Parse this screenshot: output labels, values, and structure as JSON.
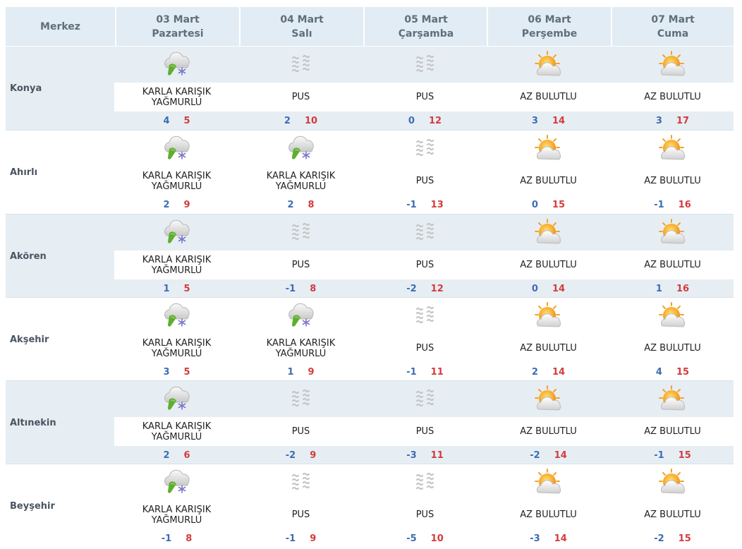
{
  "header": {
    "center_label": "Merkez",
    "days": [
      {
        "date": "03 Mart",
        "weekday": "Pazartesi"
      },
      {
        "date": "04 Mart",
        "weekday": "Salı"
      },
      {
        "date": "05 Mart",
        "weekday": "Çarşamba"
      },
      {
        "date": "06 Mart",
        "weekday": "Perşembe"
      },
      {
        "date": "07 Mart",
        "weekday": "Cuma"
      }
    ]
  },
  "conditions": {
    "sleet": {
      "line1": "KARLA KARIŞIK",
      "line2": "YAĞMURLU",
      "icon": "sleet-icon"
    },
    "mist": {
      "line1": "PUS",
      "line2": "",
      "icon": "mist-icon"
    },
    "partly_cloudy": {
      "line1": "AZ BULUTLU",
      "line2": "",
      "icon": "partly-cloudy-icon"
    }
  },
  "colors": {
    "header_bg": "#e1ecf4",
    "band_bg": "#e6eef4",
    "min_temp": "#3d6cb3",
    "max_temp": "#d43b3b"
  },
  "cities": [
    {
      "name": "Konya",
      "days": [
        {
          "cond": "sleet",
          "min": "4",
          "max": "5"
        },
        {
          "cond": "mist",
          "min": "2",
          "max": "10"
        },
        {
          "cond": "mist",
          "min": "0",
          "max": "12"
        },
        {
          "cond": "partly_cloudy",
          "min": "3",
          "max": "14"
        },
        {
          "cond": "partly_cloudy",
          "min": "3",
          "max": "17"
        }
      ]
    },
    {
      "name": "Ahırlı",
      "days": [
        {
          "cond": "sleet",
          "min": "2",
          "max": "9"
        },
        {
          "cond": "sleet",
          "min": "2",
          "max": "8"
        },
        {
          "cond": "mist",
          "min": "-1",
          "max": "13"
        },
        {
          "cond": "partly_cloudy",
          "min": "0",
          "max": "15"
        },
        {
          "cond": "partly_cloudy",
          "min": "-1",
          "max": "16"
        }
      ]
    },
    {
      "name": "Akören",
      "days": [
        {
          "cond": "sleet",
          "min": "1",
          "max": "5"
        },
        {
          "cond": "mist",
          "min": "-1",
          "max": "8"
        },
        {
          "cond": "mist",
          "min": "-2",
          "max": "12"
        },
        {
          "cond": "partly_cloudy",
          "min": "0",
          "max": "14"
        },
        {
          "cond": "partly_cloudy",
          "min": "1",
          "max": "16"
        }
      ]
    },
    {
      "name": "Akşehir",
      "days": [
        {
          "cond": "sleet",
          "min": "3",
          "max": "5"
        },
        {
          "cond": "sleet",
          "min": "1",
          "max": "9"
        },
        {
          "cond": "mist",
          "min": "-1",
          "max": "11"
        },
        {
          "cond": "partly_cloudy",
          "min": "2",
          "max": "14"
        },
        {
          "cond": "partly_cloudy",
          "min": "4",
          "max": "15"
        }
      ]
    },
    {
      "name": "Altınekin",
      "days": [
        {
          "cond": "sleet",
          "min": "2",
          "max": "6"
        },
        {
          "cond": "mist",
          "min": "-2",
          "max": "9"
        },
        {
          "cond": "mist",
          "min": "-3",
          "max": "11"
        },
        {
          "cond": "partly_cloudy",
          "min": "-2",
          "max": "14"
        },
        {
          "cond": "partly_cloudy",
          "min": "-1",
          "max": "15"
        }
      ]
    },
    {
      "name": "Beyşehir",
      "days": [
        {
          "cond": "sleet",
          "min": "-1",
          "max": "8"
        },
        {
          "cond": "mist",
          "min": "-1",
          "max": "9"
        },
        {
          "cond": "mist",
          "min": "-5",
          "max": "10"
        },
        {
          "cond": "partly_cloudy",
          "min": "-3",
          "max": "14"
        },
        {
          "cond": "partly_cloudy",
          "min": "-2",
          "max": "15"
        }
      ]
    }
  ]
}
